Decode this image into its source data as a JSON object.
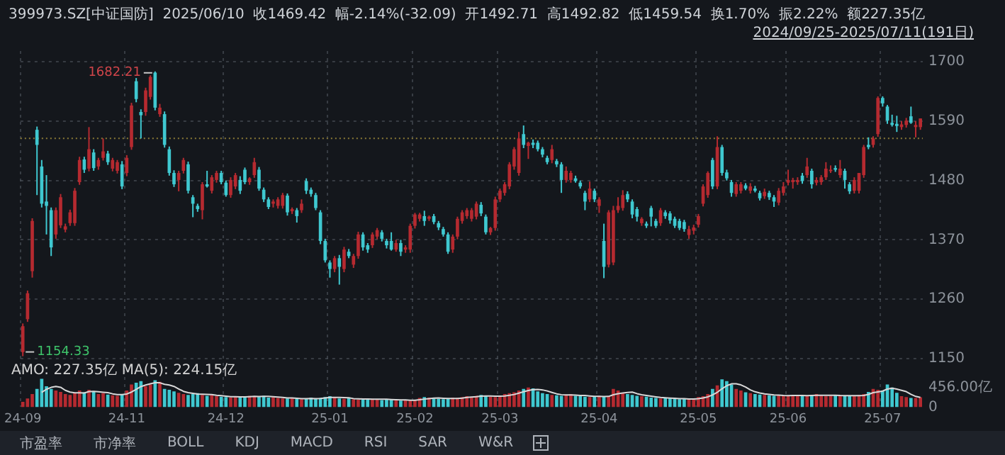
{
  "chart_data": {
    "type": "candlestick",
    "title": "399973.SZ[中证国防]  2025/06/10  收1469.42  幅-2.14%(-32.09)  开1492.71  高1492.82  低1459.54  换1.70%  振2.22%  额227.35亿",
    "subtitle": "2024/09/25-2025/07/11(191日)",
    "categories": [
      "24-09",
      null,
      null,
      null,
      null,
      null,
      null,
      null,
      null,
      null,
      null,
      null,
      null,
      null,
      null,
      null,
      null,
      null,
      null,
      null,
      null,
      null,
      "24-11",
      null,
      null,
      null,
      null,
      null,
      null,
      null,
      null,
      null,
      null,
      null,
      null,
      null,
      null,
      null,
      null,
      null,
      null,
      null,
      null,
      "24-12",
      null,
      null,
      null,
      null,
      null,
      null,
      null,
      null,
      null,
      null,
      null,
      null,
      null,
      null,
      null,
      null,
      null,
      null,
      null,
      null,
      null,
      "25-01",
      null,
      null,
      null,
      null,
      null,
      null,
      null,
      null,
      null,
      null,
      null,
      null,
      null,
      null,
      null,
      null,
      null,
      "25-02",
      null,
      null,
      null,
      null,
      null,
      null,
      null,
      null,
      null,
      null,
      null,
      null,
      null,
      null,
      null,
      null,
      null,
      "25-03",
      null,
      null,
      null,
      null,
      null,
      null,
      null,
      null,
      null,
      null,
      null,
      null,
      null,
      null,
      null,
      null,
      null,
      null,
      null,
      null,
      "25-04",
      null,
      null,
      null,
      null,
      null,
      null,
      null,
      null,
      null,
      null,
      null,
      null,
      null,
      null,
      null,
      null,
      null,
      null,
      null,
      null,
      "25-05",
      null,
      null,
      null,
      null,
      null,
      null,
      null,
      null,
      null,
      null,
      null,
      null,
      null,
      null,
      null,
      null,
      null,
      null,
      "25-06",
      null,
      null,
      null,
      null,
      null,
      null,
      null,
      null,
      null,
      null,
      null,
      null,
      null,
      null,
      null,
      null,
      null,
      null,
      null,
      "25-07",
      null,
      null,
      null,
      null,
      null,
      null,
      null,
      null
    ],
    "ohlc": [
      [
        1162,
        1215,
        1154.33,
        1210
      ],
      [
        1223,
        1276,
        1218,
        1271
      ],
      [
        1312,
        1410,
        1300,
        1405
      ],
      [
        1574,
        1580,
        1453,
        1546
      ],
      [
        1506,
        1518,
        1430,
        1437
      ],
      [
        1441,
        1490,
        1380,
        1433
      ],
      [
        1425,
        1430,
        1340,
        1356
      ],
      [
        1380,
        1430,
        1372,
        1425
      ],
      [
        1397,
        1455,
        1392,
        1449
      ],
      [
        1389,
        1400,
        1384,
        1395
      ],
      [
        1401,
        1426,
        1396,
        1421
      ],
      [
        1401,
        1466,
        1396,
        1461
      ],
      [
        1477,
        1524,
        1472,
        1518
      ],
      [
        1519,
        1524,
        1494,
        1500
      ],
      [
        1502,
        1579,
        1497,
        1538
      ],
      [
        1532,
        1538,
        1498,
        1503
      ],
      [
        1506,
        1522,
        1500,
        1518
      ],
      [
        1522,
        1558,
        1517,
        1534
      ],
      [
        1530,
        1535,
        1509,
        1514
      ],
      [
        1502,
        1522,
        1497,
        1518
      ],
      [
        1498,
        1518,
        1493,
        1514
      ],
      [
        1510,
        1516,
        1464,
        1469
      ],
      [
        1494,
        1527,
        1488,
        1522
      ],
      [
        1542,
        1624,
        1537,
        1619
      ],
      [
        1664,
        1670,
        1625,
        1631
      ],
      [
        1607,
        1612,
        1558,
        1601
      ],
      [
        1607,
        1652,
        1600,
        1647
      ],
      [
        1635,
        1675,
        1630,
        1672
      ],
      [
        1680,
        1682.21,
        1610,
        1615
      ],
      [
        1603,
        1622,
        1598,
        1615
      ],
      [
        1603,
        1608,
        1541,
        1546
      ],
      [
        1538,
        1543,
        1489,
        1494
      ],
      [
        1494,
        1499,
        1468,
        1473
      ],
      [
        1481,
        1498,
        1460,
        1494
      ],
      [
        1498,
        1522,
        1493,
        1518
      ],
      [
        1510,
        1515,
        1456,
        1461
      ],
      [
        1449,
        1453,
        1412,
        1437
      ],
      [
        1433,
        1437,
        1422,
        1427
      ],
      [
        1425,
        1477,
        1408,
        1473
      ],
      [
        1473,
        1498,
        1467,
        1469
      ],
      [
        1461,
        1490,
        1456,
        1486
      ],
      [
        1481,
        1498,
        1476,
        1494
      ],
      [
        1494,
        1498,
        1473,
        1477
      ],
      [
        1476,
        1480,
        1450,
        1453
      ],
      [
        1453,
        1486,
        1448,
        1481
      ],
      [
        1469,
        1494,
        1464,
        1490
      ],
      [
        1481,
        1488,
        1455,
        1461
      ],
      [
        1500,
        1504,
        1473,
        1477
      ],
      [
        1477,
        1486,
        1472,
        1484
      ],
      [
        1490,
        1522,
        1485,
        1514
      ],
      [
        1500,
        1505,
        1461,
        1465
      ],
      [
        1463,
        1467,
        1440,
        1445
      ],
      [
        1445,
        1449,
        1427,
        1431
      ],
      [
        1437,
        1445,
        1430,
        1441
      ],
      [
        1433,
        1449,
        1428,
        1445
      ],
      [
        1433,
        1457,
        1428,
        1453
      ],
      [
        1452,
        1456,
        1415,
        1421
      ],
      [
        1423,
        1430,
        1418,
        1427
      ],
      [
        1425,
        1429,
        1402,
        1414
      ],
      [
        1425,
        1445,
        1420,
        1437
      ],
      [
        1479,
        1484,
        1455,
        1461
      ],
      [
        1463,
        1467,
        1450,
        1455
      ],
      [
        1453,
        1457,
        1425,
        1429
      ],
      [
        1421,
        1425,
        1362,
        1368
      ],
      [
        1368,
        1372,
        1328,
        1332
      ],
      [
        1328,
        1332,
        1300,
        1316
      ],
      [
        1316,
        1340,
        1310,
        1336
      ],
      [
        1336,
        1342,
        1287,
        1320
      ],
      [
        1316,
        1357,
        1310,
        1352
      ],
      [
        1348,
        1353,
        1336,
        1340
      ],
      [
        1324,
        1344,
        1318,
        1340
      ],
      [
        1340,
        1385,
        1335,
        1380
      ],
      [
        1380,
        1384,
        1350,
        1356
      ],
      [
        1360,
        1364,
        1346,
        1352
      ],
      [
        1360,
        1384,
        1355,
        1380
      ],
      [
        1376,
        1392,
        1371,
        1388
      ],
      [
        1384,
        1388,
        1367,
        1372
      ],
      [
        1368,
        1372,
        1354,
        1360
      ],
      [
        1368,
        1384,
        1350,
        1352
      ],
      [
        1352,
        1370,
        1348,
        1364
      ],
      [
        1364,
        1370,
        1340,
        1348
      ],
      [
        1352,
        1360,
        1346,
        1356
      ],
      [
        1352,
        1400,
        1346,
        1396
      ],
      [
        1396,
        1420,
        1391,
        1417
      ],
      [
        1409,
        1420,
        1404,
        1417
      ],
      [
        1414,
        1424,
        1396,
        1405
      ],
      [
        1409,
        1415,
        1405,
        1413
      ],
      [
        1414,
        1418,
        1399,
        1403
      ],
      [
        1401,
        1405,
        1388,
        1393
      ],
      [
        1390,
        1394,
        1376,
        1380
      ],
      [
        1380,
        1384,
        1344,
        1348
      ],
      [
        1352,
        1380,
        1346,
        1376
      ],
      [
        1376,
        1413,
        1371,
        1409
      ],
      [
        1405,
        1425,
        1400,
        1421
      ],
      [
        1414,
        1429,
        1409,
        1425
      ],
      [
        1409,
        1429,
        1404,
        1425
      ],
      [
        1413,
        1441,
        1408,
        1437
      ],
      [
        1435,
        1440,
        1414,
        1419
      ],
      [
        1413,
        1417,
        1380,
        1384
      ],
      [
        1384,
        1394,
        1379,
        1392
      ],
      [
        1392,
        1450,
        1387,
        1445
      ],
      [
        1445,
        1465,
        1440,
        1461
      ],
      [
        1457,
        1477,
        1452,
        1473
      ],
      [
        1469,
        1514,
        1464,
        1510
      ],
      [
        1506,
        1542,
        1500,
        1538
      ],
      [
        1494,
        1570,
        1489,
        1558
      ],
      [
        1566,
        1582,
        1540,
        1546
      ],
      [
        1544,
        1552,
        1520,
        1550
      ],
      [
        1550,
        1556,
        1540,
        1546
      ],
      [
        1550,
        1554,
        1534,
        1538
      ],
      [
        1538,
        1542,
        1523,
        1528
      ],
      [
        1522,
        1526,
        1510,
        1514
      ],
      [
        1518,
        1546,
        1512,
        1538
      ],
      [
        1516,
        1520,
        1505,
        1510
      ],
      [
        1510,
        1514,
        1457,
        1481
      ],
      [
        1481,
        1506,
        1476,
        1498
      ],
      [
        1481,
        1498,
        1476,
        1494
      ],
      [
        1484,
        1489,
        1476,
        1479
      ],
      [
        1476,
        1480,
        1465,
        1469
      ],
      [
        1457,
        1461,
        1425,
        1441
      ],
      [
        1445,
        1478,
        1440,
        1465
      ],
      [
        1461,
        1465,
        1440,
        1445
      ],
      [
        1433,
        1449,
        1420,
        1445
      ],
      [
        1368,
        1400,
        1299,
        1320
      ],
      [
        1324,
        1425,
        1319,
        1421
      ],
      [
        1328,
        1433,
        1323,
        1425
      ],
      [
        1425,
        1449,
        1420,
        1433
      ],
      [
        1429,
        1462,
        1424,
        1453
      ],
      [
        1455,
        1460,
        1440,
        1445
      ],
      [
        1441,
        1445,
        1410,
        1417
      ],
      [
        1427,
        1431,
        1404,
        1413
      ],
      [
        1401,
        1412,
        1396,
        1409
      ],
      [
        1400,
        1404,
        1392,
        1396
      ],
      [
        1429,
        1433,
        1395,
        1413
      ],
      [
        1405,
        1409,
        1392,
        1396
      ],
      [
        1401,
        1429,
        1396,
        1425
      ],
      [
        1421,
        1425,
        1409,
        1414
      ],
      [
        1419,
        1423,
        1400,
        1406
      ],
      [
        1409,
        1413,
        1392,
        1396
      ],
      [
        1405,
        1409,
        1388,
        1392
      ],
      [
        1403,
        1407,
        1385,
        1390
      ],
      [
        1379,
        1396,
        1372,
        1390
      ],
      [
        1387,
        1398,
        1380,
        1393
      ],
      [
        1398,
        1418,
        1393,
        1414
      ],
      [
        1437,
        1473,
        1432,
        1469
      ],
      [
        1453,
        1497,
        1448,
        1494
      ],
      [
        1518,
        1522,
        1464,
        1469
      ],
      [
        1469,
        1562,
        1464,
        1542
      ],
      [
        1542,
        1546,
        1489,
        1494
      ],
      [
        1495,
        1500,
        1480,
        1484
      ],
      [
        1477,
        1481,
        1450,
        1457
      ],
      [
        1455,
        1477,
        1450,
        1473
      ],
      [
        1461,
        1477,
        1456,
        1473
      ],
      [
        1471,
        1475,
        1462,
        1465
      ],
      [
        1461,
        1475,
        1456,
        1469
      ],
      [
        1465,
        1470,
        1458,
        1461
      ],
      [
        1457,
        1461,
        1443,
        1447
      ],
      [
        1451,
        1465,
        1446,
        1459
      ],
      [
        1457,
        1461,
        1444,
        1449
      ],
      [
        1449,
        1453,
        1431,
        1441
      ],
      [
        1439,
        1466,
        1434,
        1461
      ],
      [
        1457,
        1477,
        1452,
        1469
      ],
      [
        1476,
        1500,
        1471,
        1481
      ],
      [
        1477,
        1485,
        1465,
        1481
      ],
      [
        1477,
        1486,
        1472,
        1481
      ],
      [
        1489,
        1494,
        1474,
        1479
      ],
      [
        1490,
        1522,
        1485,
        1506
      ],
      [
        1498,
        1502,
        1465,
        1473
      ],
      [
        1476,
        1486,
        1471,
        1481
      ],
      [
        1477,
        1490,
        1472,
        1486
      ],
      [
        1486,
        1514,
        1481,
        1502
      ],
      [
        1498,
        1508,
        1494,
        1500
      ],
      [
        1503,
        1508,
        1496,
        1500
      ],
      [
        1490,
        1518,
        1485,
        1502
      ],
      [
        1498,
        1502,
        1465,
        1481
      ],
      [
        1473,
        1477,
        1455,
        1460
      ],
      [
        1461,
        1486,
        1456,
        1481
      ],
      [
        1461,
        1494,
        1456,
        1494
      ],
      [
        1490,
        1546,
        1485,
        1542
      ],
      [
        1546,
        1560,
        1538,
        1542
      ],
      [
        1546,
        1562,
        1541,
        1558
      ],
      [
        1566,
        1636,
        1561,
        1633
      ],
      [
        1633,
        1636,
        1617,
        1623
      ],
      [
        1617,
        1620,
        1585,
        1591
      ],
      [
        1587,
        1602,
        1580,
        1583
      ],
      [
        1585,
        1600,
        1570,
        1581
      ],
      [
        1579,
        1590,
        1574,
        1584
      ],
      [
        1583,
        1596,
        1578,
        1591
      ],
      [
        1599,
        1617,
        1585,
        1587
      ],
      [
        1579,
        1590,
        1560,
        1583
      ],
      [
        1579,
        1595,
        1574,
        1595
      ]
    ],
    "colors": [
      "#b52a30",
      "#b52a30",
      "#b52a30",
      "#3fc8d0",
      "#3fc8d0",
      "#3fc8d0",
      "#3fc8d0",
      "#b52a30",
      "#b52a30",
      "#b52a30",
      "#b52a30",
      "#b52a30",
      "#b52a30",
      "#3fc8d0",
      "#b52a30",
      "#3fc8d0",
      "#b52a30",
      "#b52a30",
      "#3fc8d0",
      "#b52a30",
      "#b52a30",
      "#3fc8d0",
      "#b52a30",
      "#b52a30",
      "#3fc8d0",
      "#3fc8d0",
      "#b52a30",
      "#b52a30",
      "#3fc8d0",
      "#b52a30",
      "#3fc8d0",
      "#3fc8d0",
      "#3fc8d0",
      "#b52a30",
      "#b52a30",
      "#3fc8d0",
      "#3fc8d0",
      "#3fc8d0",
      "#b52a30",
      "#3fc8d0",
      "#b52a30",
      "#b52a30",
      "#3fc8d0",
      "#3fc8d0",
      "#b52a30",
      "#b52a30",
      "#3fc8d0",
      "#3fc8d0",
      "#b52a30",
      "#b52a30",
      "#3fc8d0",
      "#3fc8d0",
      "#3fc8d0",
      "#b52a30",
      "#b52a30",
      "#b52a30",
      "#3fc8d0",
      "#b52a30",
      "#3fc8d0",
      "#b52a30",
      "#3fc8d0",
      "#3fc8d0",
      "#3fc8d0",
      "#3fc8d0",
      "#3fc8d0",
      "#3fc8d0",
      "#b52a30",
      "#3fc8d0",
      "#b52a30",
      "#3fc8d0",
      "#b52a30",
      "#b52a30",
      "#3fc8d0",
      "#3fc8d0",
      "#b52a30",
      "#b52a30",
      "#3fc8d0",
      "#3fc8d0",
      "#3fc8d0",
      "#b52a30",
      "#3fc8d0",
      "#b52a30",
      "#b52a30",
      "#b52a30",
      "#b52a30",
      "#3fc8d0",
      "#b52a30",
      "#3fc8d0",
      "#3fc8d0",
      "#3fc8d0",
      "#3fc8d0",
      "#b52a30",
      "#b52a30",
      "#b52a30",
      "#b52a30",
      "#b52a30",
      "#b52a30",
      "#3fc8d0",
      "#3fc8d0",
      "#b52a30",
      "#b52a30",
      "#b52a30",
      "#b52a30",
      "#b52a30",
      "#b52a30",
      "#b52a30",
      "#3fc8d0",
      "#b52a30",
      "#3fc8d0",
      "#3fc8d0",
      "#3fc8d0",
      "#3fc8d0",
      "#b52a30",
      "#3fc8d0",
      "#3fc8d0",
      "#b52a30",
      "#b52a30",
      "#3fc8d0",
      "#3fc8d0",
      "#3fc8d0",
      "#b52a30",
      "#3fc8d0",
      "#b52a30",
      "#3fc8d0",
      "#b52a30",
      "#b52a30",
      "#b52a30",
      "#b52a30",
      "#3fc8d0",
      "#3fc8d0",
      "#3fc8d0",
      "#b52a30",
      "#3fc8d0",
      "#3fc8d0",
      "#3fc8d0",
      "#b52a30",
      "#3fc8d0",
      "#3fc8d0",
      "#3fc8d0",
      "#3fc8d0",
      "#3fc8d0",
      "#b52a30",
      "#b52a30",
      "#b52a30",
      "#b52a30",
      "#b52a30",
      "#3fc8d0",
      "#b52a30",
      "#3fc8d0",
      "#3fc8d0",
      "#3fc8d0",
      "#b52a30",
      "#b52a30",
      "#3fc8d0",
      "#b52a30",
      "#3fc8d0",
      "#3fc8d0",
      "#b52a30",
      "#3fc8d0",
      "#3fc8d0",
      "#b52a30",
      "#b52a30",
      "#b52a30",
      "#b52a30",
      "#b52a30",
      "#3fc8d0",
      "#b52a30",
      "#3fc8d0",
      "#b52a30",
      "#b52a30",
      "#b52a30",
      "#b52a30",
      "#3fc8d0",
      "#b52a30",
      "#3fc8d0",
      "#3fc8d0",
      "#b52a30",
      "#b52a30",
      "#b52a30",
      "#3fc8d0",
      "#b52a30",
      "#b52a30",
      "#3fc8d0",
      "#3fc8d0",
      "#3fc8d0",
      "#3fc8d0",
      "#b52a30",
      "#b52a30",
      "#3fc8d0",
      "#b52a30",
      "#b52a30"
    ],
    "ylim": [
      1060,
      1720
    ],
    "yticks": [
      1150,
      1260,
      1370,
      1480,
      1590,
      1700
    ],
    "grid": true,
    "ref_lines": [
      {
        "axis": "y",
        "value": 1558,
        "color": "#8a7a36",
        "line_style": "dotted"
      }
    ],
    "annotations": [
      "1682.21",
      "1154.33",
      "AMO: 227.35亿 MA(5): 224.15亿",
      "市盈率",
      "市净率",
      "BOLL",
      "KDJ",
      "MACD",
      "RSI",
      "SAR",
      "W&R"
    ],
    "y2lim": [
      0,
      8200
    ],
    "y2ticks": [
      0,
      {
        "value": 456,
        "label": "456.00亿"
      }
    ],
    "series": [
      {
        "type": "bar",
        "axis": "y2",
        "colors": [
          "#b52a30",
          "#b52a30",
          "#b52a30",
          "#3fc8d0",
          "#3fc8d0",
          "#3fc8d0",
          "#3fc8d0",
          "#b52a30",
          "#b52a30",
          "#b52a30",
          "#b52a30",
          "#b52a30",
          "#b52a30",
          "#3fc8d0",
          "#b52a30",
          "#3fc8d0",
          "#b52a30",
          "#b52a30",
          "#3fc8d0",
          "#b52a30",
          "#b52a30",
          "#3fc8d0",
          "#b52a30",
          "#b52a30",
          "#3fc8d0",
          "#3fc8d0",
          "#b52a30",
          "#b52a30",
          "#3fc8d0",
          "#b52a30",
          "#3fc8d0",
          "#3fc8d0",
          "#3fc8d0",
          "#b52a30",
          "#b52a30",
          "#3fc8d0",
          "#3fc8d0",
          "#3fc8d0",
          "#b52a30",
          "#3fc8d0",
          "#b52a30",
          "#b52a30",
          "#3fc8d0",
          "#3fc8d0",
          "#b52a30",
          "#b52a30",
          "#3fc8d0",
          "#3fc8d0",
          "#b52a30",
          "#b52a30",
          "#3fc8d0",
          "#3fc8d0",
          "#3fc8d0",
          "#b52a30",
          "#b52a30",
          "#b52a30",
          "#3fc8d0",
          "#b52a30",
          "#3fc8d0",
          "#b52a30",
          "#3fc8d0",
          "#3fc8d0",
          "#3fc8d0",
          "#3fc8d0",
          "#3fc8d0",
          "#3fc8d0",
          "#b52a30",
          "#3fc8d0",
          "#b52a30",
          "#3fc8d0",
          "#b52a30",
          "#b52a30",
          "#3fc8d0",
          "#3fc8d0",
          "#b52a30",
          "#b52a30",
          "#3fc8d0",
          "#3fc8d0",
          "#3fc8d0",
          "#b52a30",
          "#3fc8d0",
          "#b52a30",
          "#b52a30",
          "#b52a30",
          "#b52a30",
          "#3fc8d0",
          "#b52a30",
          "#3fc8d0",
          "#3fc8d0",
          "#3fc8d0",
          "#3fc8d0",
          "#b52a30",
          "#b52a30",
          "#b52a30",
          "#b52a30",
          "#b52a30",
          "#b52a30",
          "#3fc8d0",
          "#3fc8d0",
          "#b52a30",
          "#b52a30",
          "#b52a30",
          "#b52a30",
          "#b52a30",
          "#b52a30",
          "#b52a30",
          "#3fc8d0",
          "#b52a30",
          "#3fc8d0",
          "#3fc8d0",
          "#3fc8d0",
          "#3fc8d0",
          "#b52a30",
          "#3fc8d0",
          "#3fc8d0",
          "#b52a30",
          "#b52a30",
          "#3fc8d0",
          "#3fc8d0",
          "#3fc8d0",
          "#b52a30",
          "#3fc8d0",
          "#b52a30",
          "#3fc8d0",
          "#b52a30",
          "#b52a30",
          "#b52a30",
          "#b52a30",
          "#3fc8d0",
          "#3fc8d0",
          "#3fc8d0",
          "#b52a30",
          "#3fc8d0",
          "#3fc8d0",
          "#3fc8d0",
          "#b52a30",
          "#3fc8d0",
          "#3fc8d0",
          "#3fc8d0",
          "#3fc8d0",
          "#3fc8d0",
          "#b52a30",
          "#b52a30",
          "#b52a30",
          "#b52a30",
          "#b52a30",
          "#3fc8d0",
          "#b52a30",
          "#3fc8d0",
          "#3fc8d0",
          "#3fc8d0",
          "#b52a30",
          "#b52a30",
          "#3fc8d0",
          "#b52a30",
          "#3fc8d0",
          "#3fc8d0",
          "#b52a30",
          "#3fc8d0",
          "#3fc8d0",
          "#b52a30",
          "#b52a30",
          "#b52a30",
          "#b52a30",
          "#b52a30",
          "#3fc8d0",
          "#b52a30",
          "#3fc8d0",
          "#b52a30",
          "#b52a30",
          "#b52a30",
          "#b52a30",
          "#3fc8d0",
          "#b52a30",
          "#3fc8d0",
          "#3fc8d0",
          "#b52a30",
          "#b52a30",
          "#b52a30",
          "#3fc8d0",
          "#b52a30",
          "#b52a30",
          "#3fc8d0",
          "#3fc8d0",
          "#3fc8d0",
          "#3fc8d0",
          "#b52a30",
          "#b52a30",
          "#3fc8d0",
          "#b52a30",
          "#b52a30"
        ],
        "values": [
          120,
          200,
          300,
          420,
          650,
          480,
          420,
          380,
          350,
          300,
          280,
          330,
          380,
          340,
          400,
          350,
          300,
          320,
          290,
          270,
          260,
          300,
          380,
          520,
          560,
          600,
          480,
          520,
          620,
          580,
          420,
          400,
          360,
          330,
          300,
          280,
          300,
          320,
          280,
          260,
          280,
          250,
          240,
          230,
          220,
          250,
          240,
          230,
          260,
          250,
          240,
          260,
          220,
          230,
          210,
          200,
          200,
          210,
          190,
          180,
          200,
          220,
          190,
          210,
          230,
          250,
          230,
          200,
          190,
          210,
          180,
          170,
          180,
          200,
          190,
          170,
          160,
          180,
          170,
          160,
          150,
          160,
          150,
          170,
          210,
          230,
          220,
          200,
          190,
          180,
          200,
          220,
          210,
          230,
          250,
          240,
          260,
          280,
          250,
          240,
          230,
          260,
          300,
          320,
          340,
          380,
          420,
          450,
          430,
          360,
          320,
          300,
          280,
          270,
          260,
          280,
          300,
          260,
          250,
          240,
          230,
          250,
          260,
          240,
          250,
          420,
          380,
          330,
          300,
          280,
          260,
          250,
          240,
          220,
          210,
          200,
          210,
          200,
          190,
          180,
          190,
          180,
          200,
          230,
          250,
          300,
          420,
          500,
          640,
          600,
          520,
          420,
          380,
          340,
          320,
          300,
          290,
          280,
          270,
          260,
          270,
          260,
          260,
          280,
          270,
          260,
          250,
          280,
          300,
          270,
          250,
          260,
          280,
          270,
          260,
          250,
          250,
          280,
          300,
          350,
          420,
          400,
          380,
          520,
          450,
          330,
          250,
          230,
          210,
          210,
          227.35
        ]
      },
      {
        "type": "line",
        "axis": "y2",
        "color": "#d8d8d8",
        "values": [
          null,
          null,
          null,
          null,
          338,
          410,
          454,
          476,
          456,
          386,
          346,
          328,
          328,
          326,
          358,
          362,
          354,
          342,
          332,
          306,
          288,
          288,
          302,
          346,
          408,
          472,
          508,
          536,
          560,
          560,
          524,
          508,
          476,
          418,
          362,
          334,
          318,
          302,
          296,
          292,
          288,
          270,
          262,
          252,
          240,
          238,
          236,
          234,
          240,
          246,
          244,
          248,
          246,
          240,
          232,
          224,
          212,
          210,
          202,
          196,
          196,
          200,
          196,
          200,
          210,
          222,
          224,
          224,
          220,
          216,
          196,
          190,
          186,
          186,
          184,
          182,
          180,
          180,
          174,
          168,
          164,
          164,
          158,
          158,
          168,
          184,
          196,
          206,
          210,
          204,
          198,
          198,
          200,
          206,
          222,
          230,
          238,
          252,
          256,
          254,
          252,
          252,
          256,
          270,
          290,
          320,
          352,
          382,
          404,
          408,
          396,
          372,
          338,
          306,
          286,
          278,
          278,
          274,
          268,
          266,
          256,
          246,
          246,
          244,
          246,
          284,
          310,
          324,
          336,
          344,
          310,
          284,
          266,
          250,
          236,
          224,
          216,
          208,
          202,
          196,
          194,
          188,
          188,
          196,
          210,
          236,
          280,
          340,
          422,
          492,
          536,
          536,
          512,
          460,
          396,
          352,
          326,
          306,
          292,
          280,
          276,
          268,
          264,
          268,
          268,
          268,
          264,
          268,
          272,
          270,
          270,
          272,
          272,
          266,
          264,
          264,
          262,
          262,
          268,
          292,
          332,
          350,
          370,
          414,
          434,
          416,
          386,
          356,
          294,
          246,
          224.15
        ]
      }
    ],
    "legend": false
  }
}
